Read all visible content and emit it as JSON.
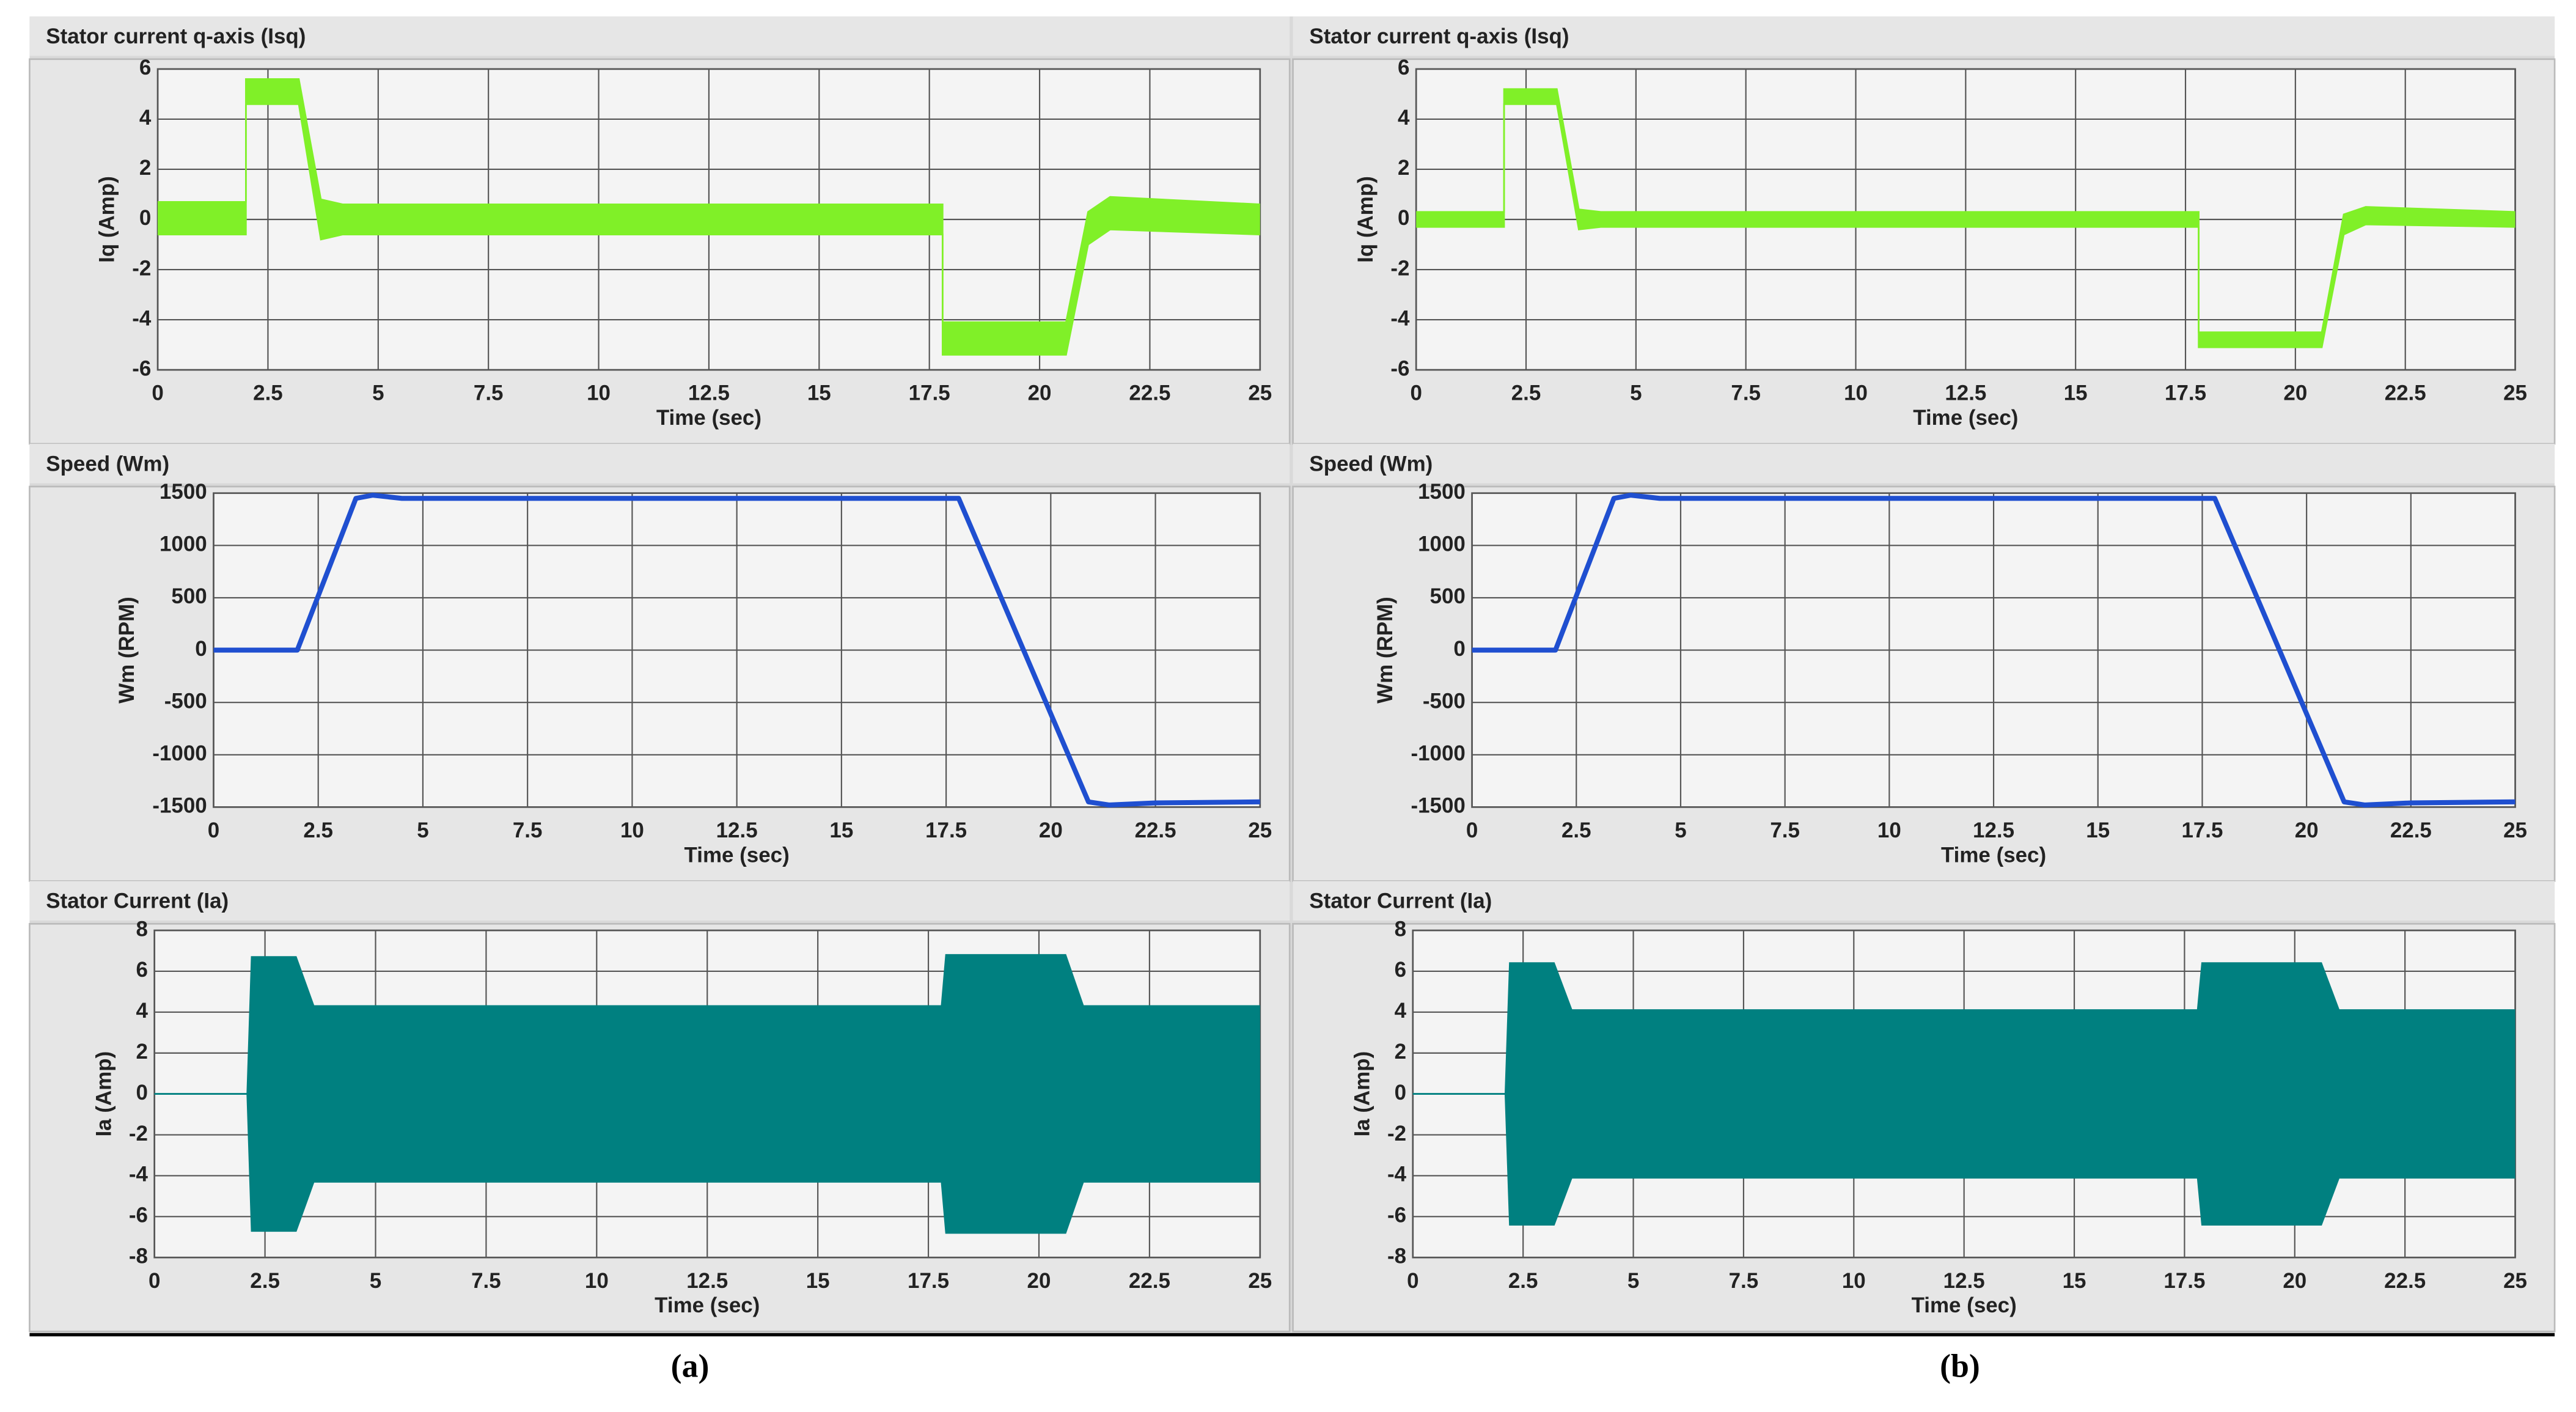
{
  "panel_labels": [
    "(a)",
    "(b)"
  ],
  "chart_data": [
    {
      "type": "band",
      "title": "Stator current q-axis (Isq)",
      "xlabel": "Time (sec)",
      "ylabel": "Iq (Amp)",
      "color": "#80f028",
      "x": [
        0,
        2,
        2,
        3.2,
        3.7,
        4.2,
        17.8,
        17.8,
        20.6,
        21.1,
        21.6,
        25
      ],
      "upper": [
        0.7,
        0.7,
        5.6,
        5.6,
        0.8,
        0.6,
        0.6,
        -4.1,
        -4.1,
        0.3,
        0.9,
        0.6
      ],
      "lower": [
        -0.6,
        -0.6,
        4.6,
        4.6,
        -0.8,
        -0.6,
        -0.6,
        -5.4,
        -5.4,
        -1,
        -0.4,
        -0.6
      ],
      "xlim": [
        0,
        25
      ],
      "ylim": [
        -6,
        6
      ],
      "xticks": [
        0,
        2.5,
        5,
        7.5,
        10,
        12.5,
        15,
        17.5,
        20,
        22.5,
        25
      ],
      "yticks": [
        -6,
        -4,
        -2,
        0,
        2,
        4,
        6
      ],
      "grid": true
    },
    {
      "type": "band",
      "title": "Stator current q-axis (Isq)",
      "xlabel": "Time (sec)",
      "ylabel": "Iq (Amp)",
      "color": "#80f028",
      "x": [
        0,
        2,
        2,
        3.2,
        3.7,
        4.2,
        17.8,
        17.8,
        20.6,
        21.1,
        21.6,
        25
      ],
      "upper": [
        0.3,
        0.3,
        5.2,
        5.2,
        0.4,
        0.3,
        0.3,
        -4.5,
        -4.5,
        0.2,
        0.5,
        0.3
      ],
      "lower": [
        -0.3,
        -0.3,
        4.6,
        4.6,
        -0.4,
        -0.3,
        -0.3,
        -5.1,
        -5.1,
        -0.6,
        -0.2,
        -0.3
      ],
      "xlim": [
        0,
        25
      ],
      "ylim": [
        -6,
        6
      ],
      "xticks": [
        0,
        2.5,
        5,
        7.5,
        10,
        12.5,
        15,
        17.5,
        20,
        22.5,
        25
      ],
      "yticks": [
        -6,
        -4,
        -2,
        0,
        2,
        4,
        6
      ],
      "grid": true
    },
    {
      "type": "line",
      "title": "Speed (Wm)",
      "xlabel": "Time (sec)",
      "ylabel": "Wm (RPM)",
      "color": "#1f4fd0",
      "x": [
        0,
        2,
        3.4,
        3.8,
        4.5,
        17.8,
        20.9,
        21.4,
        22.5,
        25
      ],
      "values": [
        0,
        0,
        1450,
        1480,
        1450,
        1450,
        -1450,
        -1480,
        -1460,
        -1450
      ],
      "xlim": [
        0,
        25
      ],
      "ylim": [
        -1500,
        1500
      ],
      "xticks": [
        0,
        2.5,
        5,
        7.5,
        10,
        12.5,
        15,
        17.5,
        20,
        22.5,
        25
      ],
      "yticks": [
        -1500,
        -1000,
        -500,
        0,
        500,
        1000,
        1500
      ],
      "grid": true
    },
    {
      "type": "line",
      "title": "Speed (Wm)",
      "xlabel": "Time (sec)",
      "ylabel": "Wm (RPM)",
      "color": "#1f4fd0",
      "x": [
        0,
        2,
        3.4,
        3.8,
        4.5,
        17.8,
        20.9,
        21.4,
        22.5,
        25
      ],
      "values": [
        0,
        0,
        1450,
        1480,
        1450,
        1450,
        -1450,
        -1480,
        -1460,
        -1450
      ],
      "xlim": [
        0,
        25
      ],
      "ylim": [
        -1500,
        1500
      ],
      "xticks": [
        0,
        2.5,
        5,
        7.5,
        10,
        12.5,
        15,
        17.5,
        20,
        22.5,
        25
      ],
      "yticks": [
        -1500,
        -1000,
        -500,
        0,
        500,
        1000,
        1500
      ],
      "grid": true
    },
    {
      "type": "band",
      "title": "Stator Current (Ia)",
      "xlabel": "Time (sec)",
      "ylabel": "Ia (Amp)",
      "color": "#008080",
      "x": [
        0,
        2.1,
        2.2,
        3.2,
        3.6,
        17.8,
        17.9,
        20.6,
        21,
        25
      ],
      "upper": [
        0,
        0,
        6.7,
        6.7,
        4.3,
        4.3,
        6.8,
        6.8,
        4.3,
        4.3
      ],
      "lower": [
        0,
        0,
        -6.7,
        -6.7,
        -4.3,
        -4.3,
        -6.8,
        -6.8,
        -4.3,
        -4.3
      ],
      "xlim": [
        0,
        25
      ],
      "ylim": [
        -8,
        8
      ],
      "xticks": [
        0,
        2.5,
        5,
        7.5,
        10,
        12.5,
        15,
        17.5,
        20,
        22.5,
        25
      ],
      "yticks": [
        -8,
        -6,
        -4,
        -2,
        0,
        2,
        4,
        6,
        8
      ],
      "grid": true
    },
    {
      "type": "band",
      "title": "Stator Current (Ia)",
      "xlabel": "Time (sec)",
      "ylabel": "Ia (Amp)",
      "color": "#008080",
      "x": [
        0,
        2.1,
        2.2,
        3.2,
        3.6,
        17.8,
        17.9,
        20.6,
        21,
        25
      ],
      "upper": [
        0,
        0,
        6.4,
        6.4,
        4.1,
        4.1,
        6.4,
        6.4,
        4.1,
        4.1
      ],
      "lower": [
        0,
        0,
        -6.4,
        -6.4,
        -4.1,
        -4.1,
        -6.4,
        -6.4,
        -4.1,
        -4.1
      ],
      "xlim": [
        0,
        25
      ],
      "ylim": [
        -8,
        8
      ],
      "xticks": [
        0,
        2.5,
        5,
        7.5,
        10,
        12.5,
        15,
        17.5,
        20,
        22.5,
        25
      ],
      "yticks": [
        -8,
        -6,
        -4,
        -2,
        0,
        2,
        4,
        6,
        8
      ],
      "grid": true
    }
  ]
}
